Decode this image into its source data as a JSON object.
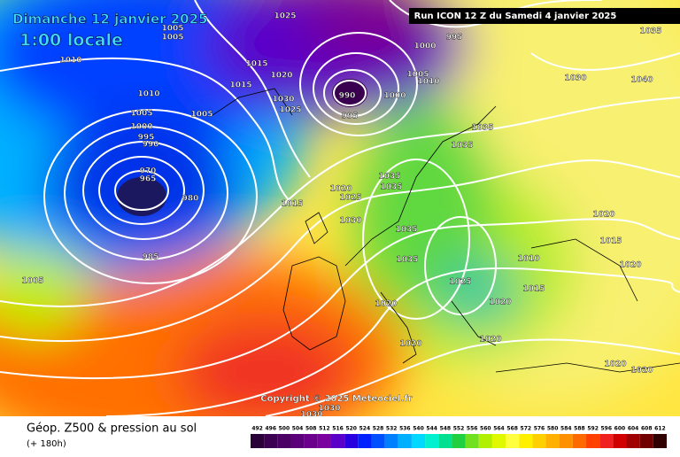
{
  "header": {
    "title": "Dimanche 12 janvier 2025",
    "subtitle": "1:00 locale",
    "run": "Run ICON 12 Z du Samedi 4 janvier 2025"
  },
  "copyright": "Copyright © 2025 Meteociel.fr",
  "footer": {
    "title": "Géop. Z500 & pression au sol",
    "subtitle": "(+ 180h)"
  },
  "colorbar": {
    "ticks": [
      492,
      496,
      500,
      504,
      508,
      512,
      516,
      520,
      524,
      528,
      532,
      536,
      540,
      544,
      548,
      552,
      556,
      560,
      564,
      568,
      572,
      576,
      580,
      584,
      588,
      592,
      596,
      600,
      604,
      608,
      612
    ]
  },
  "isobar_labels": [
    1005,
    1005,
    1010,
    1010,
    1005,
    1000,
    995,
    990,
    970,
    965,
    980,
    985,
    1005,
    1005,
    1015,
    1015,
    1020,
    1025,
    1030,
    1025,
    990,
    995,
    1000,
    1000,
    995,
    1005,
    1010,
    1035,
    1035,
    1035,
    1035,
    1020,
    1025,
    1030,
    1015,
    1035,
    1035,
    1025,
    1010,
    1015,
    1020,
    1020,
    1020,
    1020,
    1030,
    1040,
    1035,
    1020,
    1015,
    1020,
    1020,
    1020,
    1030,
    1030
  ]
}
